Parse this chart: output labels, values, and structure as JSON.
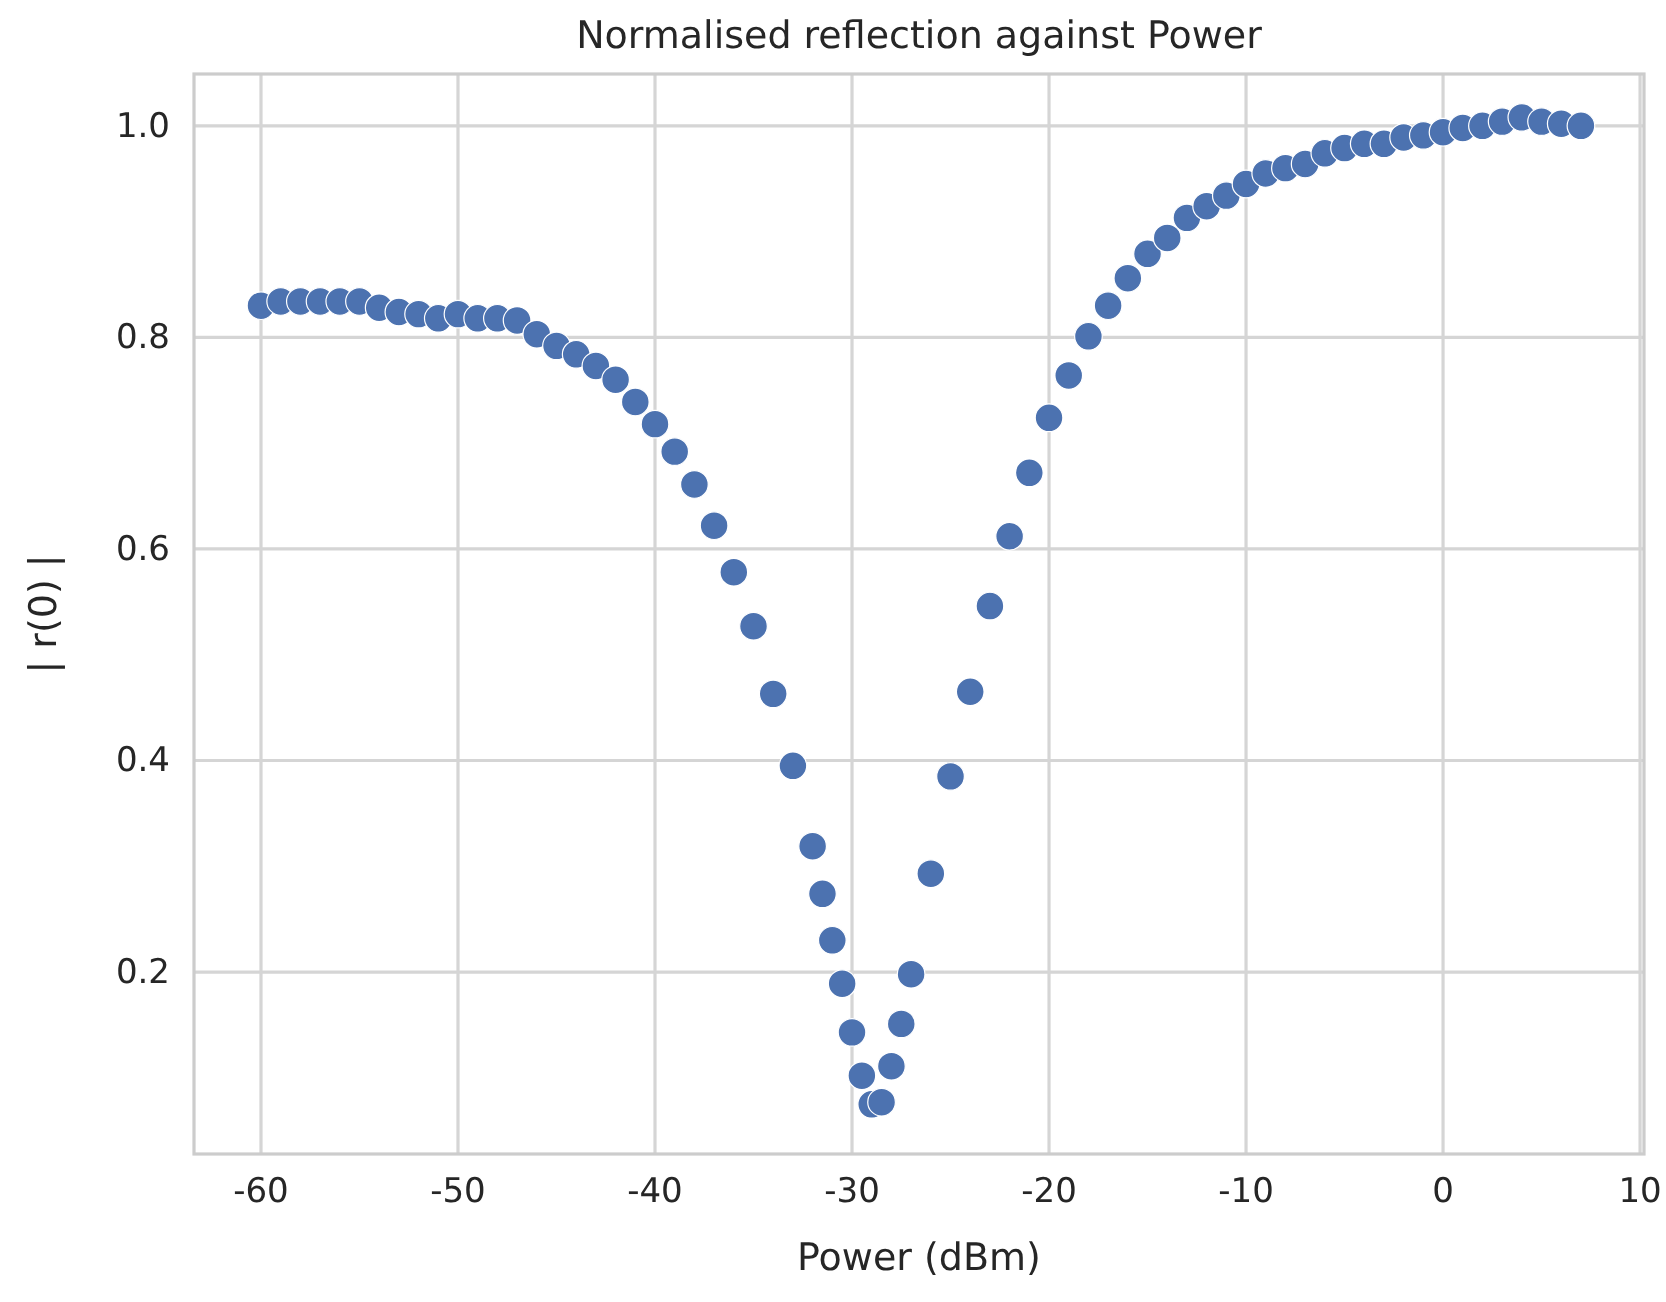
{
  "chart_data": {
    "type": "scatter",
    "title": "Normalised reflection against Power",
    "xlabel": "Power (dBm)",
    "ylabel": "| r(0) |",
    "x": [
      -60,
      -59,
      -58,
      -57,
      -56,
      -55,
      -54,
      -53,
      -52,
      -51,
      -50,
      -49,
      -48,
      -47,
      -46,
      -45,
      -44,
      -43,
      -42,
      -41,
      -40,
      -39,
      -38,
      -37,
      -36,
      -35,
      -34,
      -33,
      -32,
      -31.5,
      -31,
      -30.5,
      -30,
      -29.5,
      -29,
      -28.5,
      -28,
      -27.5,
      -27,
      -26,
      -25,
      -24,
      -23,
      -22,
      -21,
      -20,
      -19,
      -18,
      -17,
      -16,
      -15,
      -14,
      -13,
      -12,
      -11,
      -10,
      -9,
      -8,
      -7,
      -6,
      -5,
      -4,
      -3,
      -2,
      -1,
      0,
      1,
      2,
      3,
      4,
      5,
      6,
      7
    ],
    "series": [
      {
        "color": "#4c72b0",
        "values": [
          0.83,
          0.834,
          0.834,
          0.834,
          0.834,
          0.834,
          0.828,
          0.824,
          0.822,
          0.818,
          0.822,
          0.818,
          0.818,
          0.816,
          0.803,
          0.792,
          0.784,
          0.773,
          0.76,
          0.739,
          0.718,
          0.692,
          0.661,
          0.622,
          0.578,
          0.527,
          0.463,
          0.395,
          0.319,
          0.274,
          0.23,
          0.189,
          0.143,
          0.102,
          0.075,
          0.077,
          0.111,
          0.151,
          0.198,
          0.293,
          0.385,
          0.465,
          0.546,
          0.612,
          0.672,
          0.724,
          0.764,
          0.801,
          0.83,
          0.856,
          0.879,
          0.894,
          0.913,
          0.924,
          0.934,
          0.945,
          0.955,
          0.96,
          0.964,
          0.974,
          0.979,
          0.983,
          0.983,
          0.989,
          0.991,
          0.994,
          0.998,
          1.0,
          1.004,
          1.008,
          1.004,
          1.002,
          1.0
        ]
      }
    ],
    "xlim": [
      -63.4,
      10.2
    ],
    "ylim": [
      0.028,
      1.049
    ],
    "xticks": [
      -60,
      -50,
      -40,
      -30,
      -20,
      -10,
      0,
      10
    ],
    "yticks": [
      0.2,
      0.4,
      0.6,
      0.8,
      {
        "value": 1,
        "label": "1.0"
      }
    ],
    "grid": true,
    "marker": "circle"
  }
}
